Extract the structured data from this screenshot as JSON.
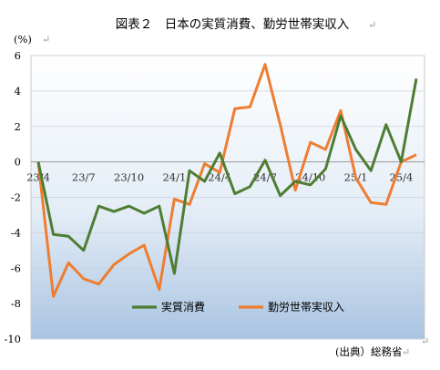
{
  "chart_data": {
    "type": "line",
    "title": "図表２　日本の実質消費、勤労世帯実収入",
    "unit_label": "(%)",
    "source": "(出典）総務省",
    "x": [
      "23/4",
      "23/5",
      "23/6",
      "23/7",
      "23/8",
      "23/9",
      "23/10",
      "23/11",
      "23/12",
      "24/1",
      "24/2",
      "24/3",
      "24/4",
      "24/5",
      "24/6",
      "24/7",
      "24/8",
      "24/9",
      "24/10",
      "24/11",
      "24/12",
      "25/1",
      "25/2",
      "25/3",
      "25/4",
      "25/5"
    ],
    "x_tick_labels": [
      "23/4",
      "23/7",
      "23/10",
      "24/1",
      "24/4",
      "24/7",
      "24/10",
      "25/1",
      "25/4"
    ],
    "ylim": [
      -10,
      6
    ],
    "y_ticks": [
      "6",
      "4",
      "2",
      "0",
      "-2",
      "-4",
      "-6",
      "-8",
      "-10"
    ],
    "grid": true,
    "legend_position": "bottom-center",
    "series": [
      {
        "name": "実質消費",
        "color": "#4e7d33",
        "values": [
          0,
          -4.1,
          -4.2,
          -5.0,
          -2.5,
          -2.8,
          -2.5,
          -2.9,
          -2.5,
          -6.3,
          -0.5,
          -1.1,
          0.5,
          -1.8,
          -1.4,
          0.1,
          -1.9,
          -1.1,
          -1.3,
          -0.4,
          2.6,
          0.7,
          -0.5,
          2.1,
          0.0,
          4.7
        ]
      },
      {
        "name": "勤労世帯実収入",
        "color": "#ef7d31",
        "values": [
          0,
          -7.6,
          -5.7,
          -6.6,
          -6.9,
          -5.8,
          -5.2,
          -4.7,
          -7.2,
          -2.1,
          -2.4,
          -0.1,
          -0.6,
          3.0,
          3.1,
          5.5,
          2.1,
          -1.6,
          1.1,
          0.7,
          2.9,
          -0.9,
          -2.3,
          -2.4,
          0.0,
          0.4
        ]
      }
    ]
  }
}
